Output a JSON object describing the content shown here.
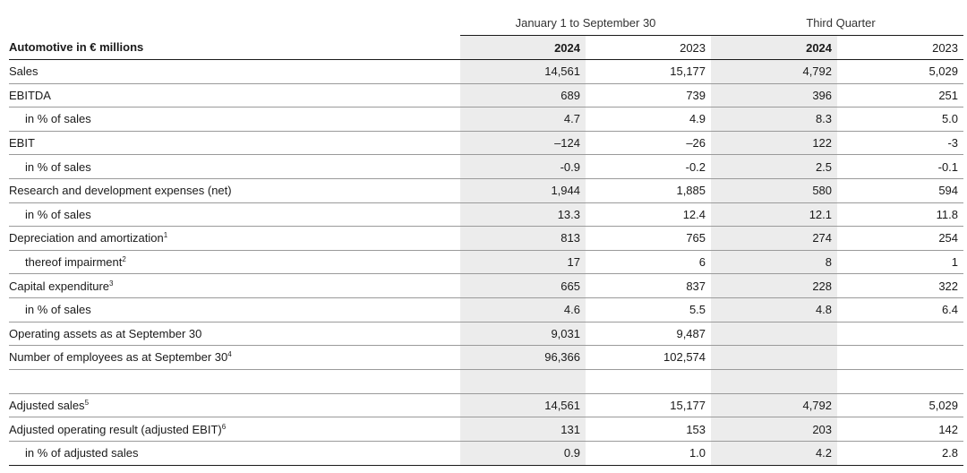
{
  "header": {
    "group1": "January 1 to September 30",
    "group2": "Third Quarter",
    "label": "Automotive in € millions",
    "years": [
      "2024",
      "2023",
      "2024",
      "2023"
    ]
  },
  "rows": [
    {
      "label": "Sales",
      "sup": "",
      "indent": false,
      "v": [
        "14,561",
        "15,177",
        "4,792",
        "5,029"
      ]
    },
    {
      "label": "EBITDA",
      "sup": "",
      "indent": false,
      "v": [
        "689",
        "739",
        "396",
        "251"
      ]
    },
    {
      "label": "in % of sales",
      "sup": "",
      "indent": true,
      "v": [
        "4.7",
        "4.9",
        "8.3",
        "5.0"
      ]
    },
    {
      "label": "EBIT",
      "sup": "",
      "indent": false,
      "v": [
        "–124",
        "–26",
        "122",
        "-3"
      ]
    },
    {
      "label": "in % of sales",
      "sup": "",
      "indent": true,
      "v": [
        "-0.9",
        "-0.2",
        "2.5",
        "-0.1"
      ]
    },
    {
      "label": "Research and development expenses (net)",
      "sup": "",
      "indent": false,
      "v": [
        "1,944",
        "1,885",
        "580",
        "594"
      ]
    },
    {
      "label": "in % of sales",
      "sup": "",
      "indent": true,
      "v": [
        "13.3",
        "12.4",
        "12.1",
        "11.8"
      ]
    },
    {
      "label": "Depreciation and amortization",
      "sup": "1",
      "indent": false,
      "v": [
        "813",
        "765",
        "274",
        "254"
      ]
    },
    {
      "label": "thereof impairment",
      "sup": "2",
      "indent": true,
      "v": [
        "17",
        "6",
        "8",
        "1"
      ]
    },
    {
      "label": "Capital expenditure",
      "sup": "3",
      "indent": false,
      "v": [
        "665",
        "837",
        "228",
        "322"
      ]
    },
    {
      "label": "in % of sales",
      "sup": "",
      "indent": true,
      "v": [
        "4.6",
        "5.5",
        "4.8",
        "6.4"
      ]
    },
    {
      "label": "Operating assets as at September 30",
      "sup": "",
      "indent": false,
      "v": [
        "9,031",
        "9,487",
        "",
        ""
      ]
    },
    {
      "label": "Number of employees as at September 30",
      "sup": "4",
      "indent": false,
      "v": [
        "96,366",
        "102,574",
        "",
        ""
      ]
    },
    {
      "label": "",
      "sup": "",
      "indent": false,
      "v": [
        "",
        "",
        "",
        ""
      ]
    },
    {
      "label": "Adjusted sales",
      "sup": "5",
      "indent": false,
      "v": [
        "14,561",
        "15,177",
        "4,792",
        "5,029"
      ]
    },
    {
      "label": "Adjusted operating result (adjusted EBIT)",
      "sup": "6",
      "indent": false,
      "v": [
        "131",
        "153",
        "203",
        "142"
      ]
    },
    {
      "label": "in % of adjusted sales",
      "sup": "",
      "indent": true,
      "v": [
        "0.9",
        "1.0",
        "4.2",
        "2.8"
      ]
    }
  ]
}
